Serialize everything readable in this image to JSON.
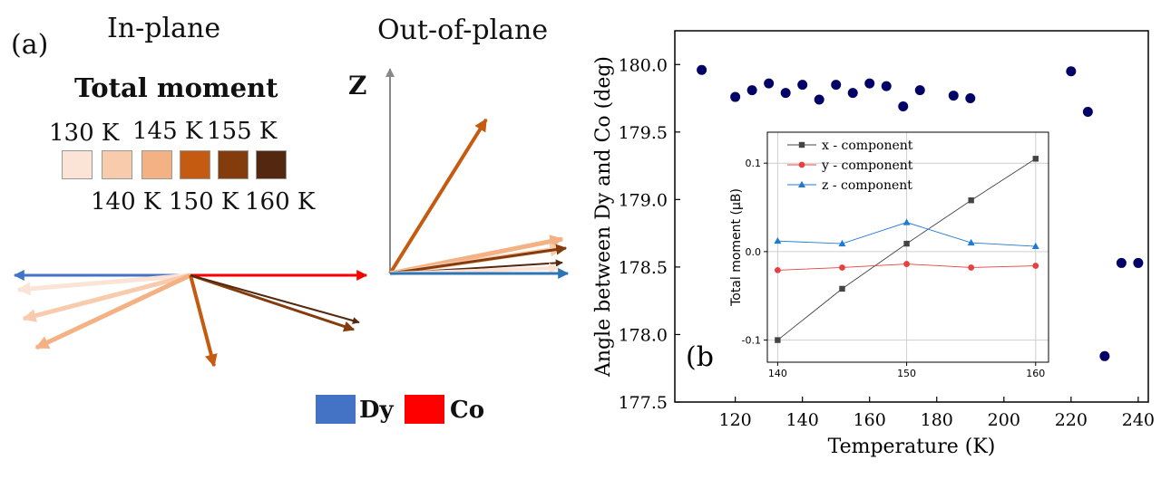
{
  "panel_a": {
    "label": "(a)",
    "in_plane_title": "In-plane",
    "out_of_plane_title": "Out-of-plane",
    "z_axis_label": "Z",
    "total_moment_title": "Total moment",
    "temperatures_top": [
      "130 K",
      "145 K",
      "155 K"
    ],
    "temperatures_bottom": [
      "140 K",
      "150 K",
      "160 K"
    ],
    "swatch_colors": [
      "#fbe4d5",
      "#f8cbad",
      "#f4b183",
      "#c55a11",
      "#843c0c",
      "#542810"
    ],
    "legend": [
      {
        "label": "Dy",
        "color": "#4472c4"
      },
      {
        "label": "Co",
        "color": "#ff0000"
      }
    ]
  },
  "chart_data": [
    {
      "type": "scatter",
      "panel_label": "(b)",
      "xlabel": "Temperature (K)",
      "ylabel": "Angle between Dy and Co (deg)",
      "xlim": [
        102,
        243
      ],
      "ylim": [
        177.5,
        180.25
      ],
      "xticks": [
        120,
        140,
        160,
        180,
        200,
        220,
        240
      ],
      "yticks": [
        177.5,
        178.0,
        178.5,
        179.0,
        179.5,
        180.0
      ],
      "marker_color": "#000066",
      "x": [
        110,
        120,
        125,
        130,
        135,
        140,
        145,
        150,
        155,
        160,
        165,
        170,
        175,
        185,
        190,
        220,
        225,
        230,
        235,
        240
      ],
      "y": [
        179.96,
        179.76,
        179.81,
        179.86,
        179.79,
        179.85,
        179.74,
        179.85,
        179.79,
        179.86,
        179.84,
        179.69,
        179.81,
        179.77,
        179.75,
        179.95,
        179.65,
        177.84,
        178.53,
        178.53
      ]
    },
    {
      "type": "line",
      "ylabel": "Total moment (μB)",
      "xlim": [
        139.2,
        161.0
      ],
      "ylim": [
        -0.125,
        0.135
      ],
      "xticks": [
        140,
        150,
        160
      ],
      "yticks": [
        -0.1,
        0.0,
        0.1
      ],
      "series": [
        {
          "name": "x - component",
          "color": "#444444",
          "marker": "square",
          "x": [
            140,
            145,
            150,
            155,
            160
          ],
          "y": [
            -0.1,
            -0.042,
            0.009,
            0.058,
            0.105
          ]
        },
        {
          "name": "y - component",
          "color": "#e84040",
          "marker": "circle",
          "x": [
            140,
            145,
            150,
            155,
            160
          ],
          "y": [
            -0.021,
            -0.018,
            -0.014,
            -0.018,
            -0.016
          ]
        },
        {
          "name": "z - component",
          "color": "#1f7ad1",
          "marker": "triangle",
          "x": [
            140,
            145,
            150,
            155,
            160
          ],
          "y": [
            0.012,
            0.009,
            0.033,
            0.01,
            0.006
          ]
        }
      ]
    }
  ]
}
